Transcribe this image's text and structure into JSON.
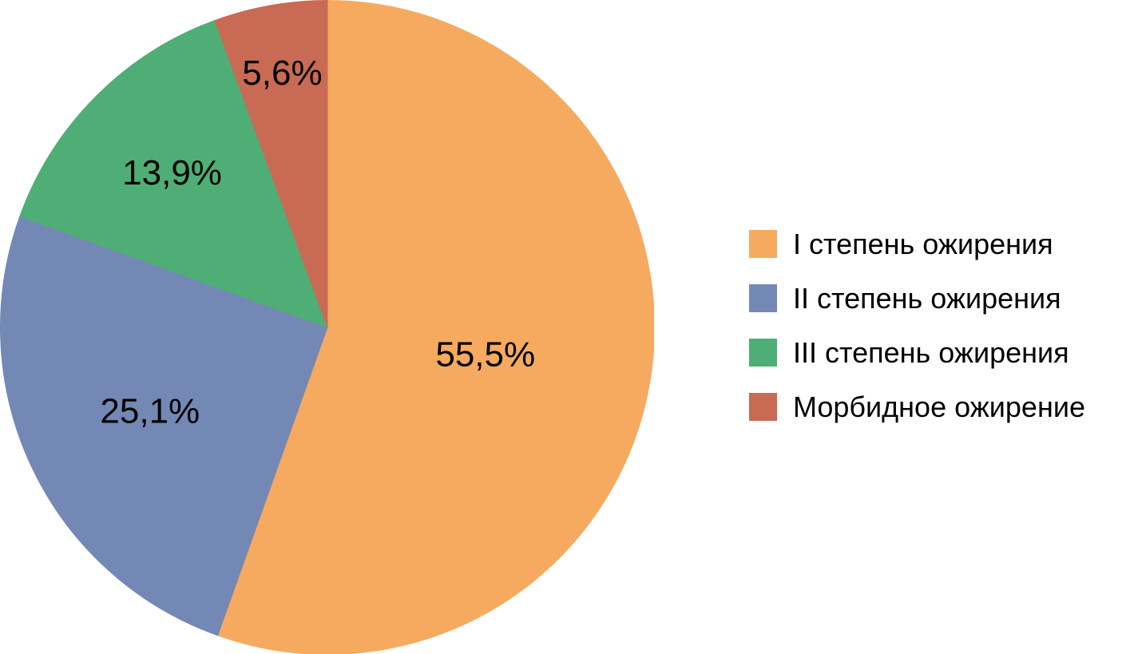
{
  "chart_data": {
    "type": "pie",
    "title": "",
    "start_angle_deg": 0,
    "direction": "clockwise",
    "legend_position": "right",
    "background_color": "#FFFFFF",
    "value_label_color": "#000000",
    "slices": [
      {
        "label": "I степень ожирения",
        "value": 55.5,
        "display": "55,5%",
        "color": "#F5AA5F",
        "label_radius": 0.49
      },
      {
        "label": "II степень ожирения",
        "value": 25.1,
        "display": "25,1%",
        "color": "#7388B5",
        "label_radius": 0.6
      },
      {
        "label": "III степень ожирения",
        "value": 13.9,
        "display": "13,9%",
        "color": "#4FAE75",
        "label_radius": 0.67
      },
      {
        "label": "Морбидное ожирение",
        "value": 5.6,
        "display": "5,6%",
        "color": "#C96A55",
        "label_radius": 0.79
      }
    ]
  }
}
